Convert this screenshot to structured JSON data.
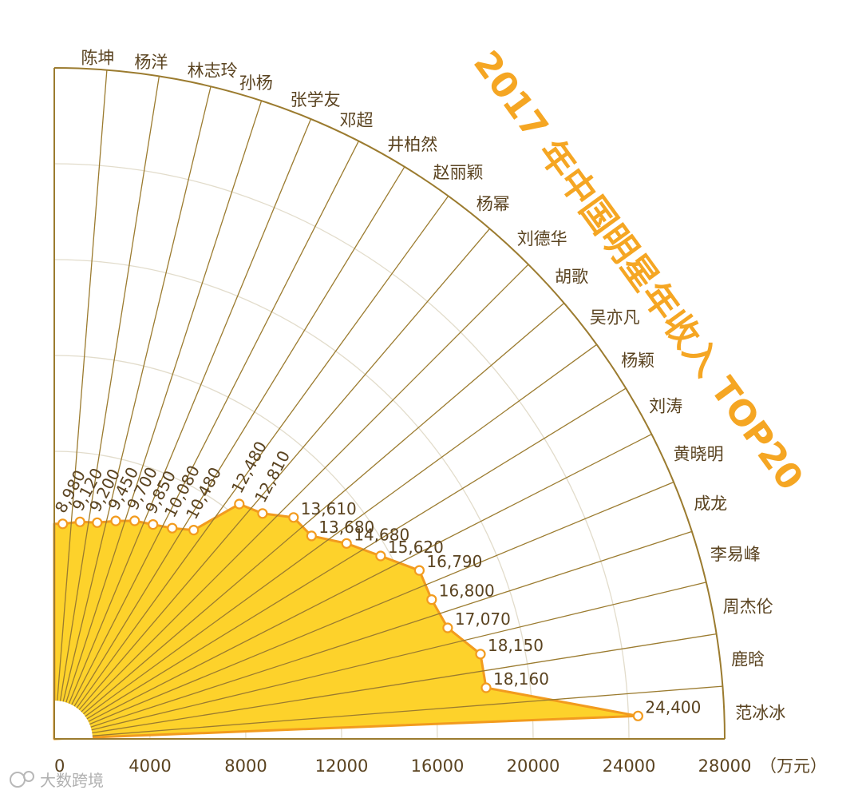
{
  "chart_data": {
    "type": "polar-area",
    "title": "2017 年中国明星年收入 TOP20",
    "unit": "（万元）",
    "radial_ticks": [
      "0",
      "4000",
      "8000",
      "12000",
      "16000",
      "20000",
      "24000",
      "28000"
    ],
    "rmax": 28000,
    "categories": [
      "陈坤",
      "杨洋",
      "林志玲",
      "孙杨",
      "张学友",
      "邓超",
      "井柏然",
      "赵丽颖",
      "杨幂",
      "刘德华",
      "胡歌",
      "吴亦凡",
      "杨颖",
      "刘涛",
      "黄晓明",
      "成龙",
      "李易峰",
      "周杰伦",
      "鹿晗",
      "范冰冰"
    ],
    "values": [
      8980,
      9120,
      9200,
      9450,
      9700,
      9850,
      10080,
      10480,
      12480,
      12810,
      13610,
      13680,
      14680,
      15620,
      16790,
      16800,
      17070,
      18150,
      18160,
      24400
    ],
    "value_labels": [
      "8,980",
      "9,120",
      "9,200",
      "9,450",
      "9,700",
      "9,850",
      "10,080",
      "10,480",
      "12,480",
      "12,810",
      "13,610",
      "13,680",
      "14,680",
      "15,620",
      "16,790",
      "16,800",
      "17,070",
      "18,150",
      "18,160",
      "24,400"
    ],
    "colors": {
      "fill": "#fdd22b",
      "line": "#f29b1e",
      "axis": "#9b7b2f",
      "grid": "#e2dccb",
      "title": "#f5a623"
    }
  },
  "watermark": "大数跨境"
}
